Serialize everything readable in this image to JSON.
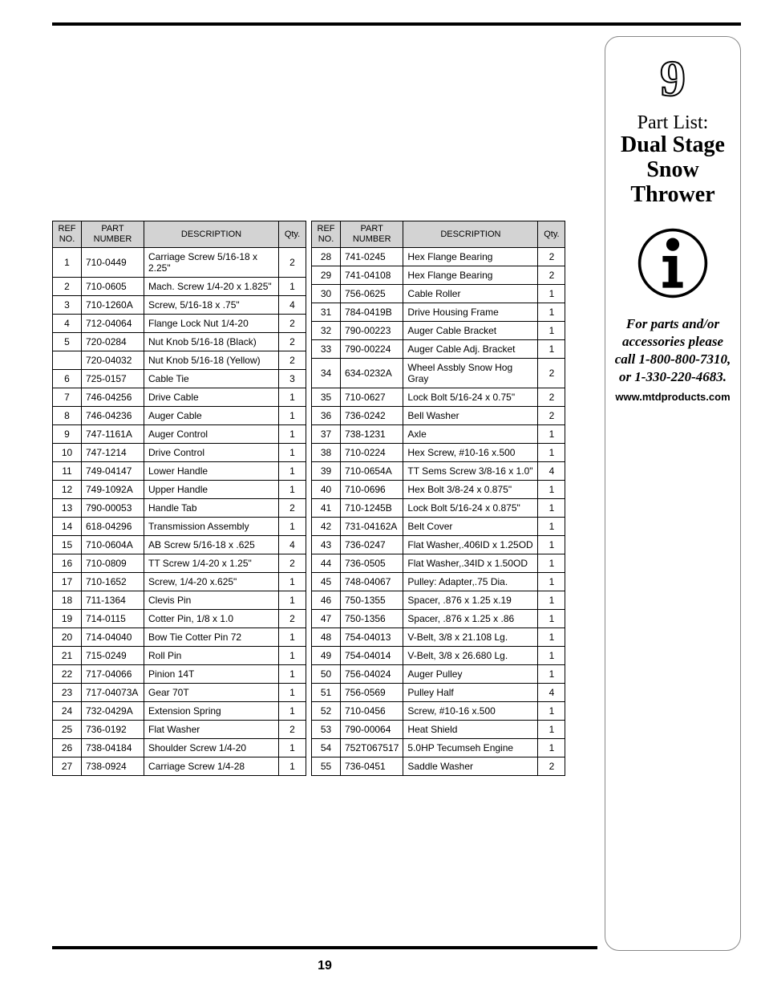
{
  "page_number": "19",
  "headers": {
    "ref": "REF\nNO.",
    "part": "PART\nNUMBER",
    "desc": "DESCRIPTION",
    "qty": "Qty."
  },
  "table_left": [
    {
      "ref": "1",
      "part": "710-0449",
      "desc": "Carriage Screw 5/16-18 x 2.25\"",
      "qty": "2"
    },
    {
      "ref": "2",
      "part": "710-0605",
      "desc": "Mach. Screw 1/4-20 x 1.825\"",
      "qty": "1"
    },
    {
      "ref": "3",
      "part": "710-1260A",
      "desc": "Screw, 5/16-18 x .75\"",
      "qty": "4"
    },
    {
      "ref": "4",
      "part": "712-04064",
      "desc": "Flange Lock Nut 1/4-20",
      "qty": "2"
    },
    {
      "ref": "5",
      "part": "720-0284",
      "desc": "Nut Knob 5/16-18 (Black)",
      "qty": "2"
    },
    {
      "ref": "",
      "part": "720-04032",
      "desc": "Nut Knob 5/16-18 (Yellow)",
      "qty": "2"
    },
    {
      "ref": "6",
      "part": "725-0157",
      "desc": "Cable Tie",
      "qty": "3"
    },
    {
      "ref": "7",
      "part": "746-04256",
      "desc": "Drive Cable",
      "qty": "1"
    },
    {
      "ref": "8",
      "part": "746-04236",
      "desc": "Auger Cable",
      "qty": "1"
    },
    {
      "ref": "9",
      "part": "747-1161A",
      "desc": "Auger Control",
      "qty": "1"
    },
    {
      "ref": "10",
      "part": "747-1214",
      "desc": "Drive Control",
      "qty": "1"
    },
    {
      "ref": "11",
      "part": "749-04147",
      "desc": "Lower Handle",
      "qty": "1"
    },
    {
      "ref": "12",
      "part": "749-1092A",
      "desc": "Upper Handle",
      "qty": "1"
    },
    {
      "ref": "13",
      "part": "790-00053",
      "desc": "Handle Tab",
      "qty": "2"
    },
    {
      "ref": "14",
      "part": "618-04296",
      "desc": "Transmission Assembly",
      "qty": "1"
    },
    {
      "ref": "15",
      "part": "710-0604A",
      "desc": "AB Screw 5/16-18 x .625",
      "qty": "4"
    },
    {
      "ref": "16",
      "part": "710-0809",
      "desc": "TT Screw 1/4-20 x 1.25\"",
      "qty": "2"
    },
    {
      "ref": "17",
      "part": "710-1652",
      "desc": "Screw, 1/4-20 x.625\"",
      "qty": "1"
    },
    {
      "ref": "18",
      "part": "711-1364",
      "desc": "Clevis Pin",
      "qty": "1"
    },
    {
      "ref": "19",
      "part": "714-0115",
      "desc": "Cotter Pin, 1/8 x 1.0",
      "qty": "2"
    },
    {
      "ref": "20",
      "part": "714-04040",
      "desc": "Bow Tie Cotter Pin 72",
      "qty": "1"
    },
    {
      "ref": "21",
      "part": "715-0249",
      "desc": "Roll Pin",
      "qty": "1"
    },
    {
      "ref": "22",
      "part": "717-04066",
      "desc": "Pinion 14T",
      "qty": "1"
    },
    {
      "ref": "23",
      "part": "717-04073A",
      "desc": "Gear 70T",
      "qty": "1"
    },
    {
      "ref": "24",
      "part": "732-0429A",
      "desc": "Extension Spring",
      "qty": "1"
    },
    {
      "ref": "25",
      "part": "736-0192",
      "desc": "Flat Washer",
      "qty": "2"
    },
    {
      "ref": "26",
      "part": "738-04184",
      "desc": "Shoulder Screw 1/4-20",
      "qty": "1"
    },
    {
      "ref": "27",
      "part": "738-0924",
      "desc": "Carriage Screw 1/4-28",
      "qty": "1"
    }
  ],
  "table_right": [
    {
      "ref": "28",
      "part": "741-0245",
      "desc": "Hex Flange Bearing",
      "qty": "2"
    },
    {
      "ref": "29",
      "part": "741-04108",
      "desc": "Hex Flange Bearing",
      "qty": "2"
    },
    {
      "ref": "30",
      "part": "756-0625",
      "desc": "Cable Roller",
      "qty": "1"
    },
    {
      "ref": "31",
      "part": "784-0419B",
      "desc": "Drive Housing Frame",
      "qty": "1"
    },
    {
      "ref": "32",
      "part": "790-00223",
      "desc": "Auger Cable Bracket",
      "qty": "1"
    },
    {
      "ref": "33",
      "part": "790-00224",
      "desc": "Auger Cable Adj. Bracket",
      "qty": "1"
    },
    {
      "ref": "34",
      "part": "634-0232A",
      "desc": "Wheel Assbly Snow Hog Gray",
      "qty": "2"
    },
    {
      "ref": "35",
      "part": "710-0627",
      "desc": "Lock Bolt 5/16-24 x 0.75\"",
      "qty": "2"
    },
    {
      "ref": "36",
      "part": "736-0242",
      "desc": "Bell Washer",
      "qty": "2"
    },
    {
      "ref": "37",
      "part": "738-1231",
      "desc": "Axle",
      "qty": "1"
    },
    {
      "ref": "38",
      "part": "710-0224",
      "desc": "Hex Screw, #10-16 x.500",
      "qty": "1"
    },
    {
      "ref": "39",
      "part": "710-0654A",
      "desc": "TT Sems Screw 3/8-16 x 1.0\"",
      "qty": "4"
    },
    {
      "ref": "40",
      "part": "710-0696",
      "desc": "Hex Bolt 3/8-24 x 0.875\"",
      "qty": "1"
    },
    {
      "ref": "41",
      "part": "710-1245B",
      "desc": "Lock Bolt 5/16-24 x 0.875\"",
      "qty": "1"
    },
    {
      "ref": "42",
      "part": "731-04162A",
      "desc": "Belt Cover",
      "qty": "1"
    },
    {
      "ref": "43",
      "part": "736-0247",
      "desc": "Flat Washer,.406ID x 1.25OD",
      "qty": "1"
    },
    {
      "ref": "44",
      "part": "736-0505",
      "desc": "Flat Washer,.34ID x 1.50OD",
      "qty": "1"
    },
    {
      "ref": "45",
      "part": "748-04067",
      "desc": "Pulley: Adapter,.75 Dia.",
      "qty": "1"
    },
    {
      "ref": "46",
      "part": "750-1355",
      "desc": "Spacer, .876 x 1.25 x.19",
      "qty": "1"
    },
    {
      "ref": "47",
      "part": "750-1356",
      "desc": "Spacer, .876 x 1.25 x .86",
      "qty": "1"
    },
    {
      "ref": "48",
      "part": "754-04013",
      "desc": "V-Belt, 3/8 x 21.108 Lg.",
      "qty": "1"
    },
    {
      "ref": "49",
      "part": "754-04014",
      "desc": "V-Belt, 3/8 x 26.680 Lg.",
      "qty": "1"
    },
    {
      "ref": "50",
      "part": "756-04024",
      "desc": "Auger Pulley",
      "qty": "1"
    },
    {
      "ref": "51",
      "part": "756-0569",
      "desc": "Pulley Half",
      "qty": "4"
    },
    {
      "ref": "52",
      "part": "710-0456",
      "desc": "Screw, #10-16 x.500",
      "qty": "1"
    },
    {
      "ref": "53",
      "part": "790-00064",
      "desc": "Heat Shield",
      "qty": "1"
    },
    {
      "ref": "54",
      "part": "752T067517",
      "desc": "5.0HP Tecumseh Engine",
      "qty": "1"
    },
    {
      "ref": "55",
      "part": "736-0451",
      "desc": "Saddle Washer",
      "qty": "2"
    }
  ],
  "sidebar": {
    "section_number": "9",
    "title_line1": "Part List:",
    "title_line2": "Dual Stage Snow Thrower",
    "accessories_text": "For parts and/or accessories please call 1-800-800-7310, or 1-330-220-4683.",
    "url": "www.mtdproducts.com"
  }
}
